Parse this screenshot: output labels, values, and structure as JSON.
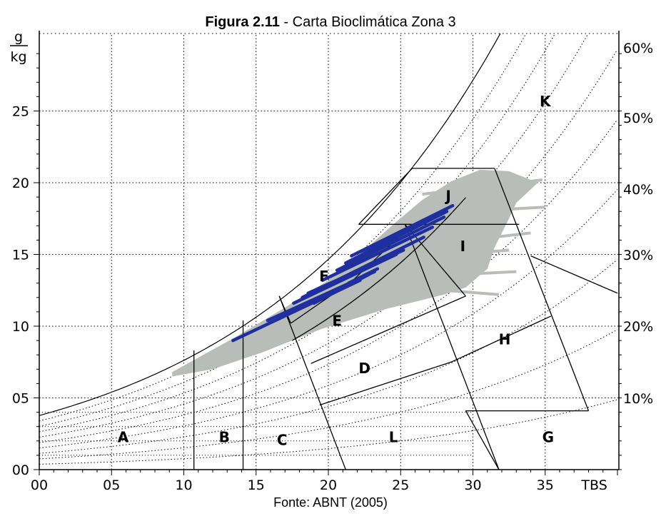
{
  "figure": {
    "title_bold": "Figura 2.11",
    "title_rest": " - Carta Bioclimática Zona 3",
    "source": "Fonte: ABNT (2005)"
  },
  "chart_data": {
    "type": "scatter",
    "title": "Figura 2.11 - Carta Bioclimática Zona 3",
    "xlabel": "TBS",
    "ylabel_top": "g",
    "ylabel_bottom": "kg",
    "xlim": [
      0,
      40
    ],
    "ylim": [
      0,
      30
    ],
    "x_ticks": [
      "00",
      "05",
      "10",
      "15",
      "20",
      "25",
      "30",
      "35"
    ],
    "y_ticks": [
      "00",
      "05",
      "10",
      "15",
      "20",
      "25"
    ],
    "rh_labels": [
      "10%",
      "20%",
      "30%",
      "40%",
      "50%",
      "60%"
    ],
    "zones": [
      {
        "id": "A",
        "x": 5.8,
        "y": 2.2
      },
      {
        "id": "B",
        "x": 12.8,
        "y": 2.2
      },
      {
        "id": "C",
        "x": 16.8,
        "y": 2.0
      },
      {
        "id": "D",
        "x": 22.5,
        "y": 7.0
      },
      {
        "id": "E",
        "x": 20.6,
        "y": 10.3
      },
      {
        "id": "F",
        "x": 19.7,
        "y": 13.4
      },
      {
        "id": "G",
        "x": 35.2,
        "y": 2.2
      },
      {
        "id": "H",
        "x": 32.2,
        "y": 9.0
      },
      {
        "id": "I",
        "x": 29.3,
        "y": 15.5
      },
      {
        "id": "J",
        "x": 28.3,
        "y": 19.0
      },
      {
        "id": "K",
        "x": 35.0,
        "y": 25.6
      },
      {
        "id": "L",
        "x": 24.5,
        "y": 2.2
      }
    ],
    "blue_segments": [
      [
        [
          13.4,
          9.0
        ],
        [
          22.2,
          13.2
        ]
      ],
      [
        [
          15.8,
          10.4
        ],
        [
          23.2,
          13.8
        ]
      ],
      [
        [
          17.6,
          11.6
        ],
        [
          24.7,
          15.0
        ]
      ],
      [
        [
          18.6,
          12.3
        ],
        [
          25.2,
          15.3
        ]
      ],
      [
        [
          18.2,
          12.0
        ],
        [
          26.6,
          16.2
        ]
      ],
      [
        [
          19.6,
          13.2
        ],
        [
          27.2,
          16.9
        ]
      ],
      [
        [
          20.6,
          13.9
        ],
        [
          28.0,
          17.6
        ]
      ],
      [
        [
          21.2,
          14.4
        ],
        [
          28.2,
          18.0
        ]
      ],
      [
        [
          21.6,
          14.9
        ],
        [
          28.6,
          18.4
        ]
      ],
      [
        [
          22.0,
          15.1
        ],
        [
          26.2,
          17.0
        ]
      ],
      [
        [
          21.4,
          13.0
        ],
        [
          23.4,
          14.0
        ]
      ],
      [
        [
          19.0,
          11.6
        ],
        [
          22.8,
          13.6
        ]
      ]
    ],
    "colors": {
      "blue_data": "#1f2f9e",
      "gray_data": "#b8bdb9",
      "grid": "#000000"
    }
  }
}
